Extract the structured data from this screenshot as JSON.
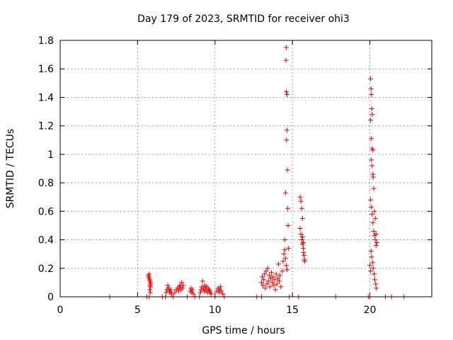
{
  "chart_data": {
    "type": "scatter",
    "title": "Day 179 of 2023, SRMTID for receiver ohi3",
    "xlabel": "GPS time / hours",
    "ylabel": "SRMTID / TECUs",
    "xlim": [
      0,
      24
    ],
    "ylim": [
      0,
      1.8
    ],
    "xticks": [
      0,
      5,
      10,
      15,
      20
    ],
    "yticks": [
      0,
      0.2,
      0.4,
      0.6,
      0.8,
      1,
      1.2,
      1.4,
      1.6,
      1.8
    ],
    "xtick_labels": [
      "0",
      "5",
      "10",
      "15",
      "20"
    ],
    "ytick_labels": [
      "0",
      "0.2",
      "0.4",
      "0.6",
      "0.8",
      "1",
      "1.2",
      "1.4",
      "1.6",
      "1.8"
    ],
    "grid": true,
    "marker": "+",
    "color": "#e00000",
    "series": [
      {
        "name": "SRMTID",
        "points": [
          [
            3.2,
            0.0
          ],
          [
            5.6,
            0.0
          ],
          [
            5.75,
            0.0
          ],
          [
            5.7,
            0.15
          ],
          [
            5.72,
            0.14
          ],
          [
            5.75,
            0.13
          ],
          [
            5.78,
            0.12
          ],
          [
            5.8,
            0.11
          ],
          [
            5.82,
            0.1
          ],
          [
            5.85,
            0.09
          ],
          [
            5.8,
            0.08
          ],
          [
            5.83,
            0.07
          ],
          [
            5.78,
            0.05
          ],
          [
            5.82,
            0.03
          ],
          [
            5.75,
            0.16
          ],
          [
            6.6,
            0.0
          ],
          [
            6.8,
            0.0
          ],
          [
            6.85,
            0.03
          ],
          [
            6.9,
            0.05
          ],
          [
            6.95,
            0.08
          ],
          [
            7.0,
            0.06
          ],
          [
            7.05,
            0.04
          ],
          [
            7.1,
            0.03
          ],
          [
            7.15,
            0.05
          ],
          [
            7.2,
            0.02
          ],
          [
            7.3,
            0.0
          ],
          [
            7.4,
            0.03
          ],
          [
            7.5,
            0.05
          ],
          [
            7.6,
            0.06
          ],
          [
            7.65,
            0.04
          ],
          [
            7.7,
            0.07
          ],
          [
            7.75,
            0.08
          ],
          [
            7.8,
            0.05
          ],
          [
            7.85,
            0.1
          ],
          [
            7.9,
            0.06
          ],
          [
            7.95,
            0.08
          ],
          [
            8.2,
            0.0
          ],
          [
            8.4,
            0.04
          ],
          [
            8.45,
            0.06
          ],
          [
            8.5,
            0.03
          ],
          [
            8.55,
            0.05
          ],
          [
            8.6,
            0.02
          ],
          [
            8.7,
            0.0
          ],
          [
            9.0,
            0.0
          ],
          [
            9.05,
            0.03
          ],
          [
            9.1,
            0.05
          ],
          [
            9.15,
            0.07
          ],
          [
            9.2,
            0.11
          ],
          [
            9.25,
            0.06
          ],
          [
            9.3,
            0.04
          ],
          [
            9.35,
            0.08
          ],
          [
            9.4,
            0.05
          ],
          [
            9.45,
            0.07
          ],
          [
            9.5,
            0.03
          ],
          [
            9.55,
            0.06
          ],
          [
            9.6,
            0.04
          ],
          [
            9.65,
            0.05
          ],
          [
            9.7,
            0.03
          ],
          [
            9.75,
            0.02
          ],
          [
            10.0,
            0.0
          ],
          [
            10.1,
            0.04
          ],
          [
            10.2,
            0.06
          ],
          [
            10.25,
            0.03
          ],
          [
            10.3,
            0.05
          ],
          [
            10.35,
            0.07
          ],
          [
            10.4,
            0.04
          ],
          [
            10.5,
            0.02
          ],
          [
            10.6,
            0.0
          ],
          [
            12.7,
            0.0
          ],
          [
            13.0,
            0.0
          ],
          [
            13.0,
            0.1
          ],
          [
            13.05,
            0.14
          ],
          [
            13.1,
            0.08
          ],
          [
            13.15,
            0.12
          ],
          [
            13.2,
            0.16
          ],
          [
            13.25,
            0.06
          ],
          [
            13.3,
            0.18
          ],
          [
            13.35,
            0.09
          ],
          [
            13.4,
            0.2
          ],
          [
            13.45,
            0.11
          ],
          [
            13.5,
            0.15
          ],
          [
            13.55,
            0.07
          ],
          [
            13.6,
            0.13
          ],
          [
            13.65,
            0.17
          ],
          [
            13.7,
            0.1
          ],
          [
            13.75,
            0.14
          ],
          [
            13.8,
            0.08
          ],
          [
            13.85,
            0.12
          ],
          [
            13.9,
            0.05
          ],
          [
            13.95,
            0.16
          ],
          [
            14.0,
            0.09
          ],
          [
            14.05,
            0.13
          ],
          [
            14.1,
            0.23
          ],
          [
            14.15,
            0.11
          ],
          [
            14.2,
            0.15
          ],
          [
            14.25,
            0.07
          ],
          [
            14.35,
            0.18
          ],
          [
            14.4,
            0.25
          ],
          [
            14.45,
            0.3
          ],
          [
            14.5,
            0.33
          ],
          [
            14.55,
            0.27
          ],
          [
            14.6,
            0.22
          ],
          [
            14.65,
            0.19
          ],
          [
            14.5,
            0.4
          ],
          [
            14.55,
            0.73
          ],
          [
            14.6,
            1.44
          ],
          [
            14.65,
            1.42
          ],
          [
            14.6,
            1.75
          ],
          [
            14.58,
            1.66
          ],
          [
            14.62,
            1.1
          ],
          [
            14.65,
            1.17
          ],
          [
            14.68,
            0.89
          ],
          [
            14.7,
            0.62
          ],
          [
            14.72,
            0.5
          ],
          [
            14.75,
            0.34
          ],
          [
            14.8,
            0.0
          ],
          [
            15.4,
            0.0
          ],
          [
            15.5,
            0.7
          ],
          [
            15.55,
            0.67
          ],
          [
            15.6,
            0.62
          ],
          [
            15.65,
            0.55
          ],
          [
            15.5,
            0.48
          ],
          [
            15.55,
            0.44
          ],
          [
            15.6,
            0.4
          ],
          [
            15.65,
            0.37
          ],
          [
            15.7,
            0.34
          ],
          [
            15.72,
            0.31
          ],
          [
            15.75,
            0.29
          ],
          [
            15.78,
            0.26
          ],
          [
            15.8,
            0.25
          ],
          [
            15.65,
            0.42
          ],
          [
            15.7,
            0.38
          ],
          [
            17.8,
            0.0
          ],
          [
            19.9,
            0.0
          ],
          [
            20.0,
            0.0
          ],
          [
            20.05,
            1.53
          ],
          [
            20.08,
            1.46
          ],
          [
            20.1,
            1.42
          ],
          [
            20.12,
            1.32
          ],
          [
            20.15,
            1.28
          ],
          [
            20.05,
            1.24
          ],
          [
            20.1,
            1.11
          ],
          [
            20.15,
            1.04
          ],
          [
            20.2,
            1.03
          ],
          [
            20.1,
            0.96
          ],
          [
            20.15,
            0.92
          ],
          [
            20.2,
            0.86
          ],
          [
            20.22,
            0.84
          ],
          [
            20.25,
            0.76
          ],
          [
            20.05,
            0.68
          ],
          [
            20.1,
            0.63
          ],
          [
            20.15,
            0.58
          ],
          [
            20.2,
            0.52
          ],
          [
            20.25,
            0.46
          ],
          [
            20.3,
            0.43
          ],
          [
            20.35,
            0.4
          ],
          [
            20.4,
            0.36
          ],
          [
            20.08,
            0.32
          ],
          [
            20.12,
            0.28
          ],
          [
            20.18,
            0.24
          ],
          [
            20.22,
            0.2
          ],
          [
            20.28,
            0.16
          ],
          [
            20.32,
            0.12
          ],
          [
            20.38,
            0.09
          ],
          [
            20.42,
            0.06
          ],
          [
            20.3,
            0.6
          ],
          [
            20.35,
            0.55
          ],
          [
            20.4,
            0.44
          ],
          [
            20.45,
            0.38
          ],
          [
            20.0,
            0.22
          ],
          [
            20.05,
            0.18
          ],
          [
            21.0,
            0.0
          ],
          [
            21.4,
            0.0
          ],
          [
            22.2,
            0.0
          ]
        ]
      }
    ]
  }
}
